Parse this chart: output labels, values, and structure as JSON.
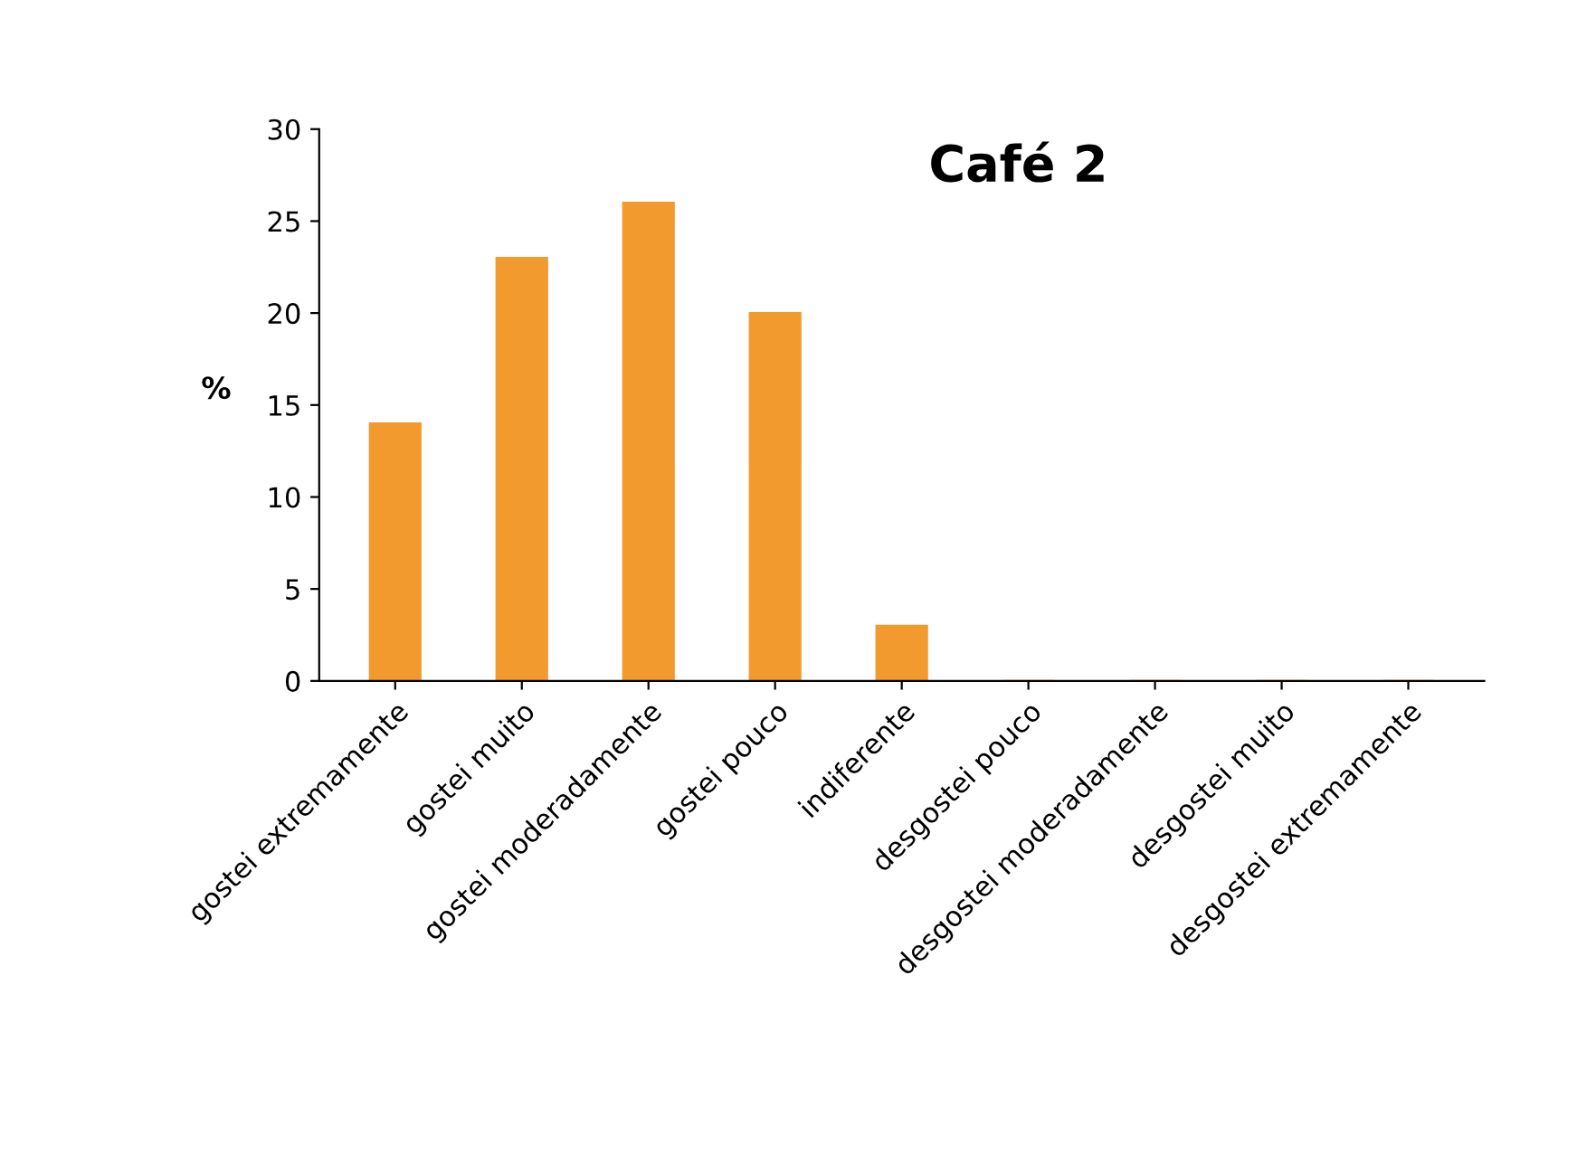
{
  "chart_data": {
    "type": "bar",
    "title": "Café 2",
    "ylabel": "%",
    "categories": [
      "gostei extremamente",
      "gostei muito",
      "gostei moderadamente",
      "gostei pouco",
      "indiferente",
      "desgostei pouco",
      "desgostei moderadamente",
      "desgostei muito",
      "desgostei extremamente"
    ],
    "values": [
      14,
      23,
      26,
      20,
      3,
      0,
      0,
      0,
      0
    ],
    "color": "#f39a2e",
    "ylim": [
      0,
      30
    ],
    "yticks": [
      0,
      5,
      10,
      15,
      20,
      25,
      30
    ],
    "grid": false,
    "legend": false
  }
}
